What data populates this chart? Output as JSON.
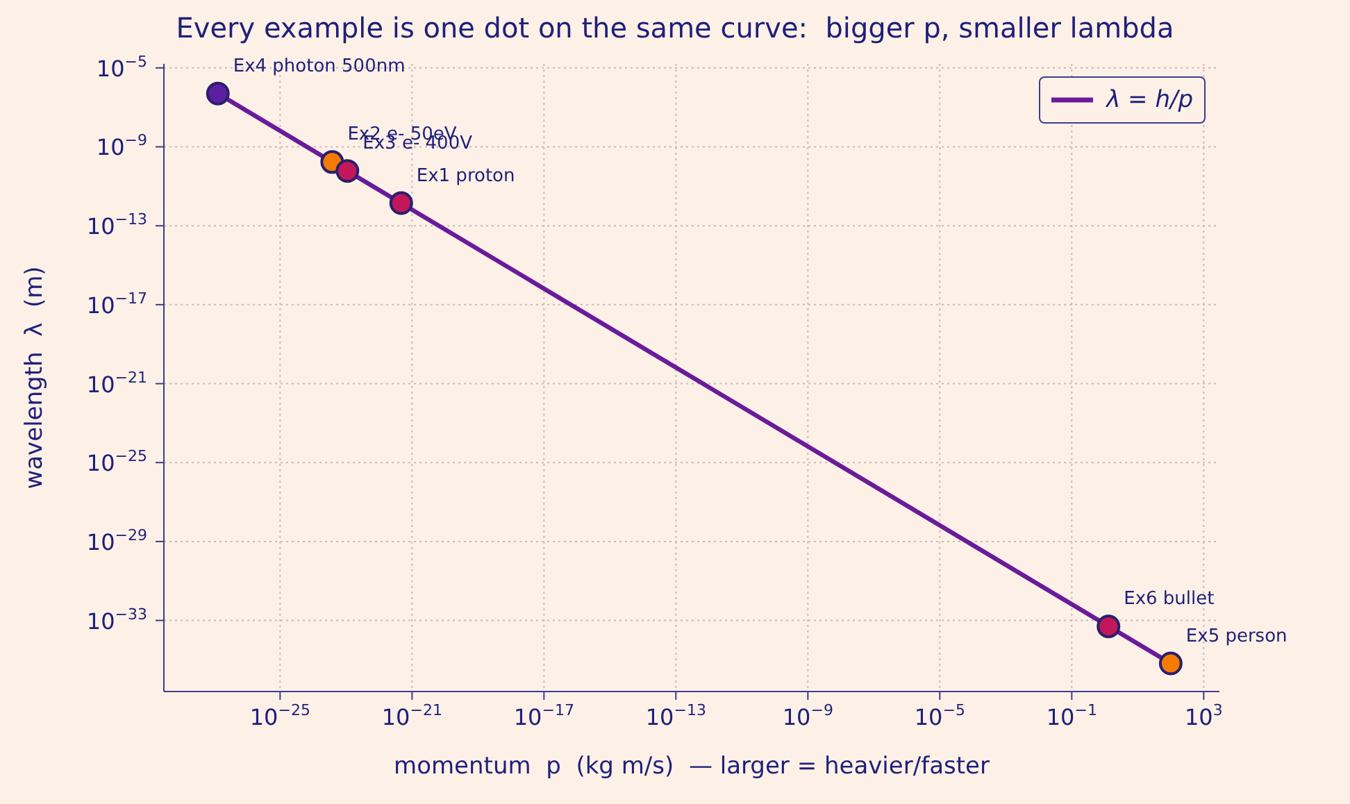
{
  "chart_data": {
    "type": "line",
    "title": "Every example is one dot on the same curve:  bigger p, smaller lambda",
    "xlabel": "momentum  p  (kg m/s)  — larger = heavier/faster",
    "ylabel": "wavelength  λ  (m)",
    "log": "xy",
    "grid": true,
    "legend": "top right",
    "xlim": [
      3e-29,
      3000.0
    ],
    "ylim": [
      2.5e-37,
      1.6e-05
    ],
    "xticks": [
      {
        "value": 1e-25,
        "label": "10$^{−25}$"
      },
      {
        "value": 1e-21,
        "label": "10$^{−21}$"
      },
      {
        "value": 1e-17,
        "label": "10$^{−17}$"
      },
      {
        "value": 1e-13,
        "label": "10$^{−13}$"
      },
      {
        "value": 1e-09,
        "label": "10$^{−9}$"
      },
      {
        "value": 1e-05,
        "label": "10$^{−5}$"
      },
      {
        "value": 0.1,
        "label": "10$^{−1}$"
      },
      {
        "value": 1000,
        "label": "10$^{3}$"
      }
    ],
    "yticks": [
      {
        "value": 1e-05,
        "label": "10$^{−5}$"
      },
      {
        "value": 1e-09,
        "label": "10$^{−9}$"
      },
      {
        "value": 1e-13,
        "label": "10$^{−13}$"
      },
      {
        "value": 1e-17,
        "label": "10$^{−17}$"
      },
      {
        "value": 1e-21,
        "label": "10$^{−21}$"
      },
      {
        "value": 1e-25,
        "label": "10$^{−25}$"
      },
      {
        "value": 1e-29,
        "label": "10$^{−29}$"
      },
      {
        "value": 1e-33,
        "label": "10$^{−33}$"
      }
    ],
    "series": [
      {
        "type": "line",
        "name": "λ = h/p",
        "color": "#6a1b9a",
        "line_style": "solid",
        "x": [
          1.3e-27,
          100
        ],
        "values": [
          5e-07,
          6.6e-36
        ]
      },
      {
        "type": "scatter",
        "marker": "circle",
        "colors": [
          "#5b1fa0",
          "#f57c00",
          "#c2185b",
          "#c2185b",
          "#c2185b",
          "#f57c00"
        ],
        "x": [
          1.3e-27,
          3.8e-24,
          1.1e-23,
          4.7e-22,
          1.3,
          100
        ],
        "values": [
          5e-07,
          1.7e-10,
          6e-11,
          1.4e-12,
          5e-34,
          6.6e-36
        ]
      }
    ],
    "annotations": [
      {
        "text": "Ex4 photon 500nm",
        "x": 1.3e-27,
        "y": 5e-07
      },
      {
        "text": "Ex2 e- 50eV",
        "x": 3.8e-24,
        "y": 1.7e-10
      },
      {
        "text": "Ex3 e- 400V",
        "x": 1.1e-23,
        "y": 6e-11
      },
      {
        "text": "Ex1 proton",
        "x": 4.7e-22,
        "y": 1.4e-12
      },
      {
        "text": "Ex6 bullet",
        "x": 1.3,
        "y": 5e-34
      },
      {
        "text": "Ex5 person",
        "x": 100,
        "y": 6.6e-36
      }
    ]
  }
}
